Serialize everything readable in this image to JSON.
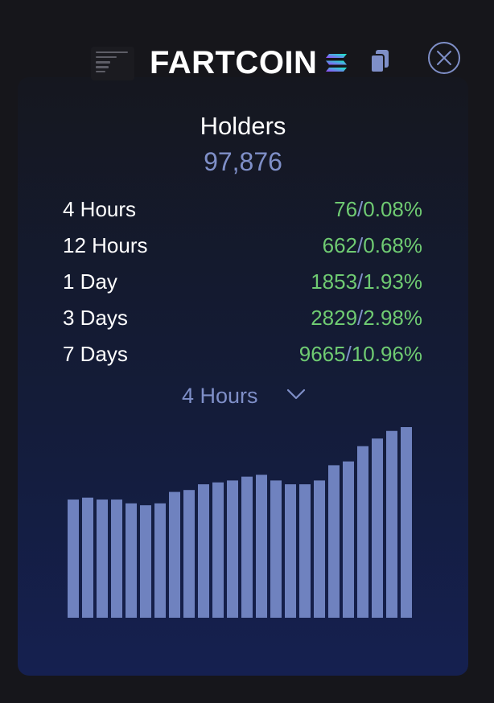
{
  "token": {
    "name": "FARTCOIN",
    "chain_icon": "solana-icon",
    "copy_icon": "copy-icon",
    "close_icon": "close-icon"
  },
  "holders": {
    "label": "Holders",
    "count": "97,876"
  },
  "stats": [
    {
      "label": "4 Hours",
      "count": "76",
      "percent": "0.08%"
    },
    {
      "label": "12 Hours",
      "count": "662",
      "percent": "0.68%"
    },
    {
      "label": "1 Day",
      "count": "1853",
      "percent": "1.93%"
    },
    {
      "label": "3 Days",
      "count": "2829",
      "percent": "2.98%"
    },
    {
      "label": "7 Days",
      "count": "9665",
      "percent": "10.96%"
    }
  ],
  "period_select": {
    "selected": "4 Hours"
  },
  "colors": {
    "accent": "#7f8fc8",
    "positive": "#6fcb72",
    "bar": "#6f82bf",
    "background": "#16161b"
  },
  "chart_data": {
    "type": "bar",
    "values": [
      62,
      63,
      62,
      62,
      60,
      59,
      60,
      66,
      67,
      70,
      71,
      72,
      74,
      75,
      72,
      70,
      70,
      72,
      80,
      82,
      90,
      94,
      98,
      100
    ],
    "ylim": [
      0,
      100
    ]
  }
}
